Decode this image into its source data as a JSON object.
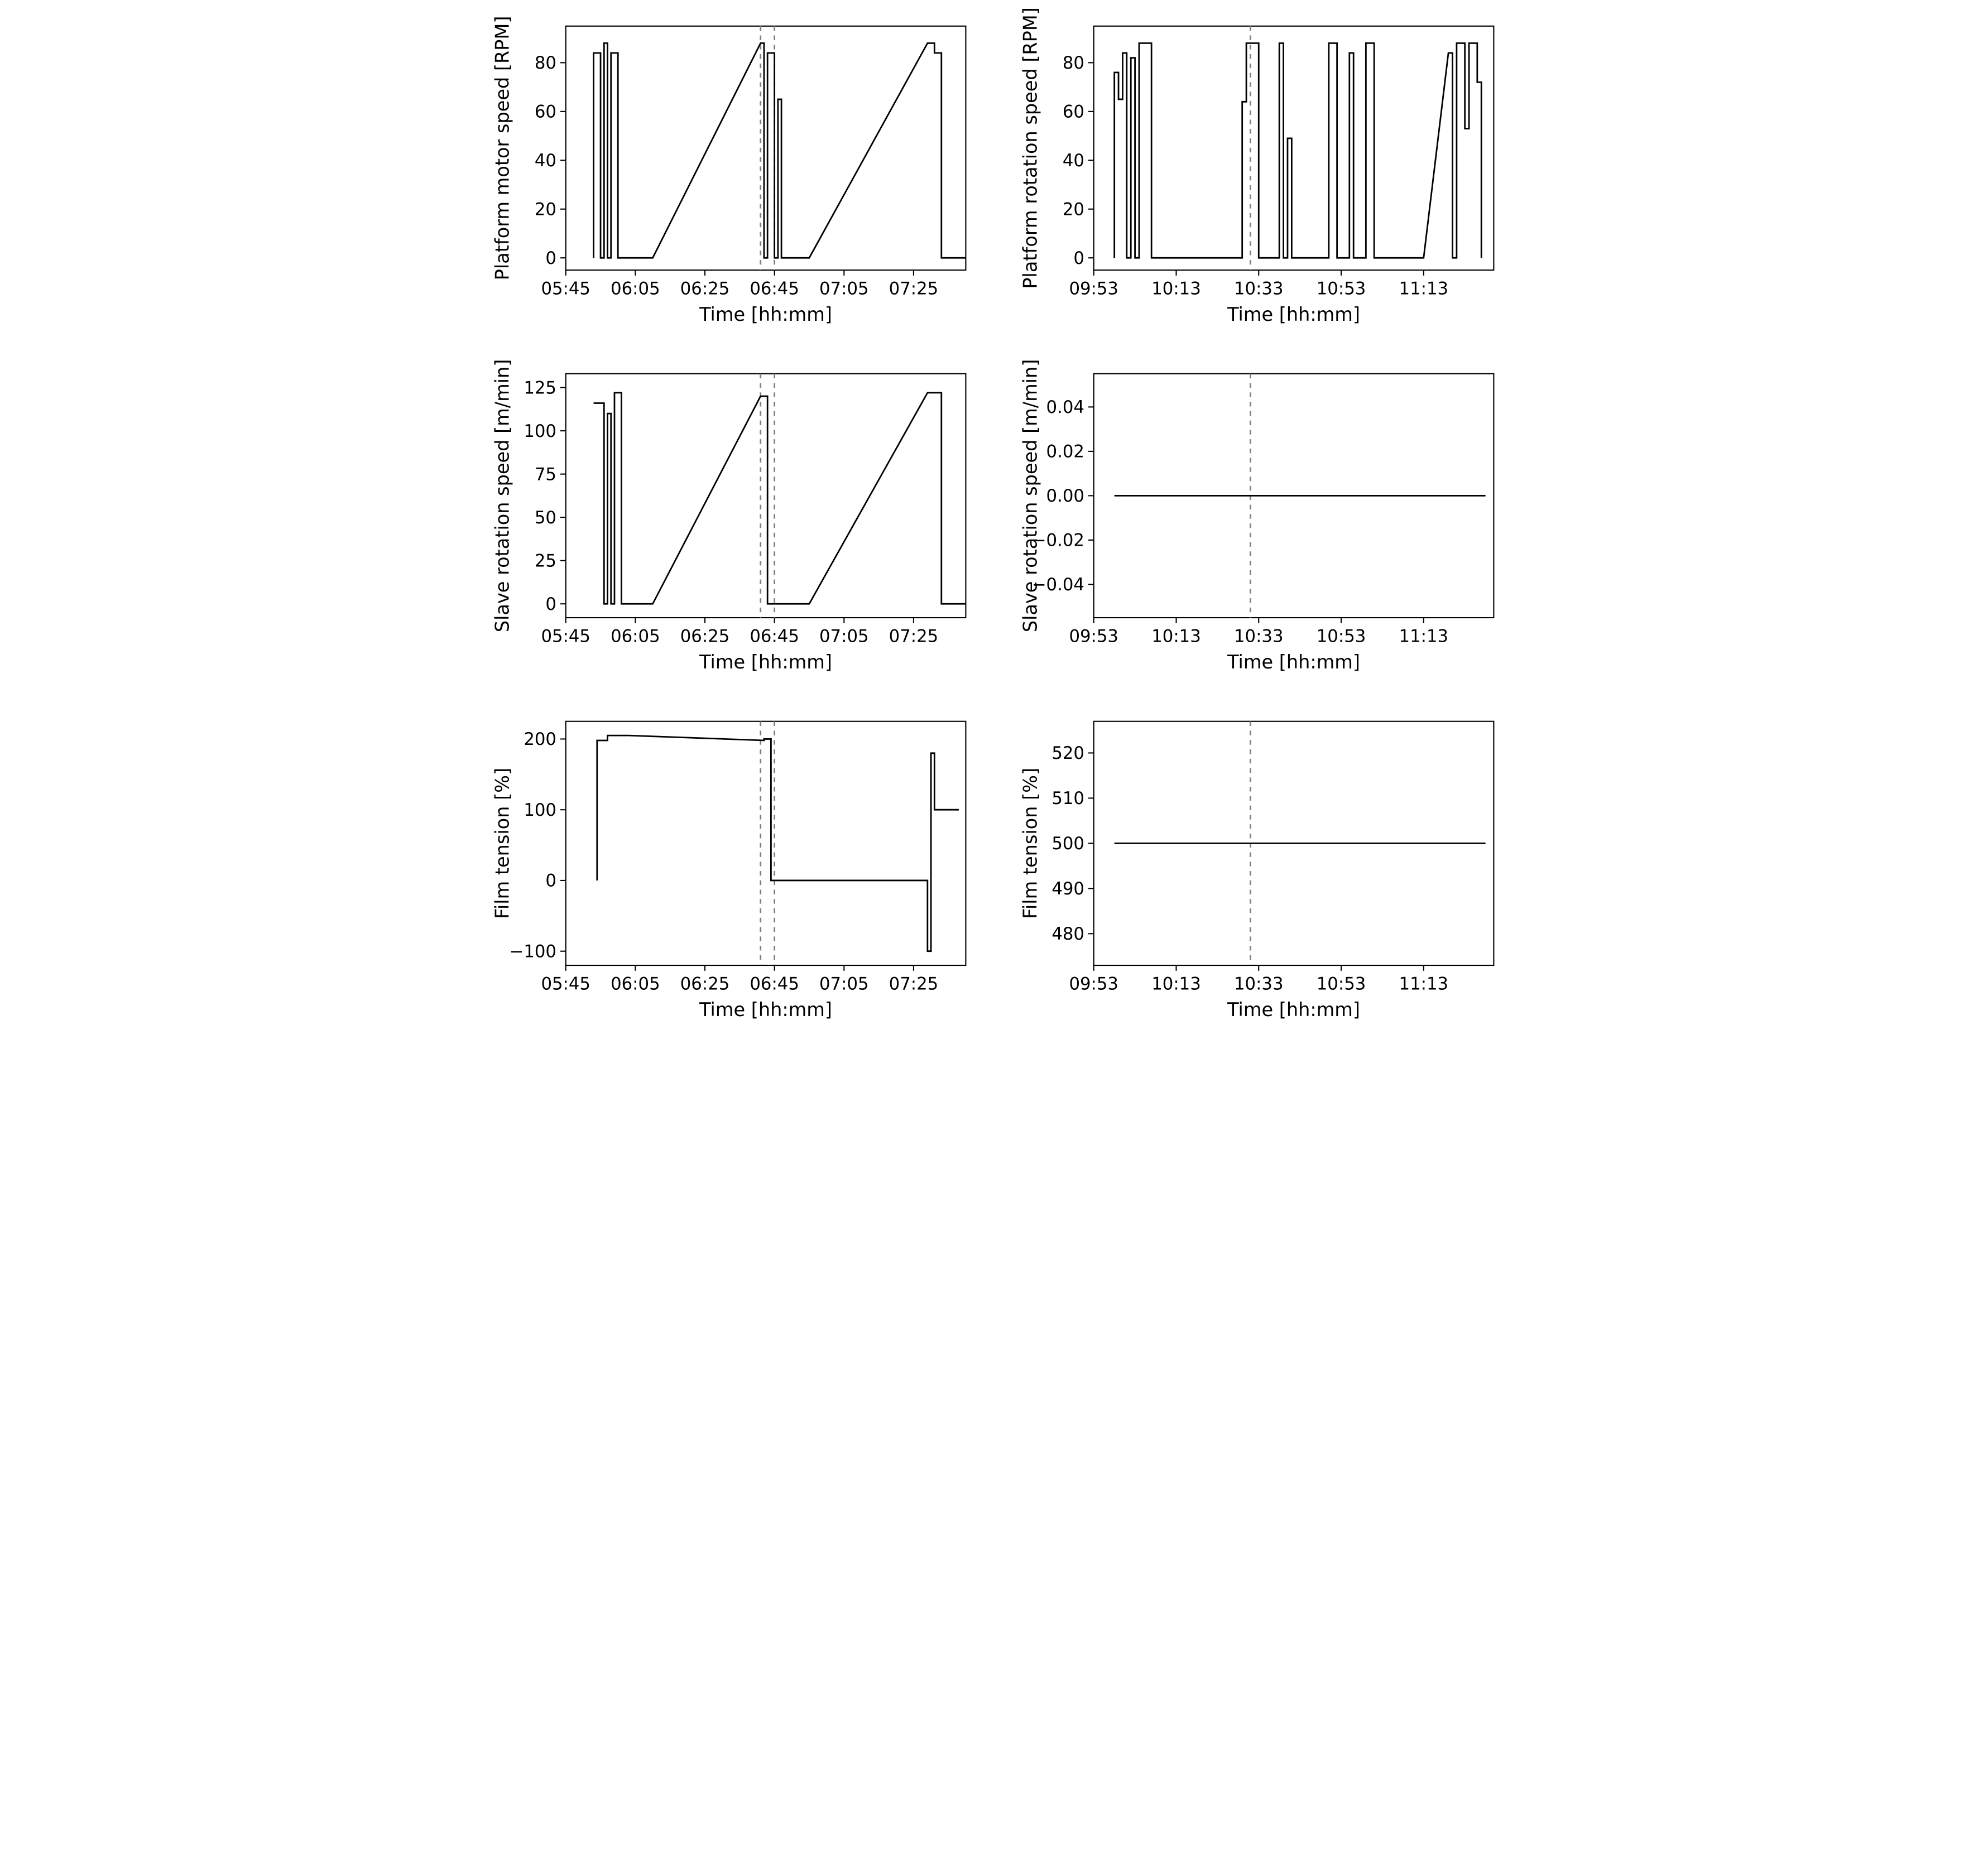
{
  "layout": {
    "rows": 3,
    "cols": 2,
    "background_color": "#ffffff",
    "line_color": "#000000",
    "axis_color": "#000000",
    "vline_color": "#808080",
    "vline_dash": "6,6",
    "line_width": 2,
    "spine_width": 1.5,
    "tick_len": 7,
    "font_family": "DejaVu Sans, Arial, sans-serif",
    "tick_fontsize": 22,
    "label_fontsize": 24
  },
  "panels": [
    {
      "id": "p00",
      "ylabel": "Platform motor speed [RPM]",
      "xlabel": "Time [hh:mm]",
      "xlim": [
        0,
        115
      ],
      "ylim": [
        -5,
        95
      ],
      "xticks": [
        {
          "v": 0,
          "label": "05:45"
        },
        {
          "v": 20,
          "label": "06:05"
        },
        {
          "v": 40,
          "label": "06:25"
        },
        {
          "v": 60,
          "label": "06:45"
        },
        {
          "v": 80,
          "label": "07:05"
        },
        {
          "v": 100,
          "label": "07:25"
        }
      ],
      "yticks": [
        {
          "v": 0,
          "label": "0"
        },
        {
          "v": 20,
          "label": "20"
        },
        {
          "v": 40,
          "label": "40"
        },
        {
          "v": 60,
          "label": "60"
        },
        {
          "v": 80,
          "label": "80"
        }
      ],
      "vlines": [
        56,
        60
      ],
      "series": [
        [
          [
            8,
            0
          ],
          [
            8,
            84
          ],
          [
            10,
            84
          ],
          [
            10,
            0
          ],
          [
            11,
            0
          ],
          [
            11,
            88
          ],
          [
            12,
            88
          ],
          [
            12,
            0
          ],
          [
            13,
            0
          ],
          [
            13,
            84
          ],
          [
            15,
            84
          ],
          [
            15,
            0
          ],
          [
            25,
            0
          ],
          [
            56,
            88
          ],
          [
            57,
            88
          ],
          [
            57,
            0
          ],
          [
            58,
            0
          ],
          [
            58,
            84
          ],
          [
            60,
            84
          ],
          [
            60,
            0
          ],
          [
            61,
            0
          ],
          [
            61,
            65
          ],
          [
            62,
            65
          ],
          [
            62,
            0
          ],
          [
            70,
            0
          ],
          [
            104,
            88
          ],
          [
            106,
            88
          ],
          [
            106,
            84
          ],
          [
            108,
            84
          ],
          [
            108,
            0
          ],
          [
            115,
            0
          ]
        ]
      ]
    },
    {
      "id": "p01",
      "ylabel": "Platform rotation speed [RPM]",
      "xlabel": "Time [hh:mm]",
      "xlim": [
        0,
        97
      ],
      "ylim": [
        -5,
        95
      ],
      "xticks": [
        {
          "v": 0,
          "label": "09:53"
        },
        {
          "v": 20,
          "label": "10:13"
        },
        {
          "v": 40,
          "label": "10:33"
        },
        {
          "v": 60,
          "label": "10:53"
        },
        {
          "v": 80,
          "label": "11:13"
        }
      ],
      "yticks": [
        {
          "v": 0,
          "label": "0"
        },
        {
          "v": 20,
          "label": "20"
        },
        {
          "v": 40,
          "label": "40"
        },
        {
          "v": 60,
          "label": "60"
        },
        {
          "v": 80,
          "label": "80"
        }
      ],
      "vlines": [
        38
      ],
      "series": [
        [
          [
            5,
            0
          ],
          [
            5,
            76
          ],
          [
            6,
            76
          ],
          [
            6,
            65
          ],
          [
            7,
            65
          ],
          [
            7,
            84
          ],
          [
            8,
            84
          ],
          [
            8,
            0
          ],
          [
            9,
            0
          ],
          [
            9,
            82
          ],
          [
            10,
            82
          ],
          [
            10,
            0
          ],
          [
            11,
            0
          ],
          [
            11,
            88
          ],
          [
            14,
            88
          ],
          [
            14,
            0
          ],
          [
            36,
            0
          ],
          [
            36,
            64
          ],
          [
            37,
            64
          ],
          [
            37,
            88
          ],
          [
            40,
            88
          ],
          [
            40,
            0
          ],
          [
            45,
            0
          ],
          [
            45,
            88
          ],
          [
            46,
            88
          ],
          [
            46,
            0
          ],
          [
            47,
            0
          ],
          [
            47,
            49
          ],
          [
            48,
            49
          ],
          [
            48,
            0
          ],
          [
            57,
            0
          ],
          [
            57,
            88
          ],
          [
            59,
            88
          ],
          [
            59,
            0
          ],
          [
            62,
            0
          ],
          [
            62,
            84
          ],
          [
            63,
            84
          ],
          [
            63,
            0
          ],
          [
            66,
            0
          ],
          [
            66,
            88
          ],
          [
            68,
            88
          ],
          [
            68,
            0
          ],
          [
            80,
            0
          ],
          [
            86,
            84
          ],
          [
            87,
            84
          ],
          [
            87,
            0
          ],
          [
            88,
            0
          ],
          [
            88,
            88
          ],
          [
            90,
            88
          ],
          [
            90,
            53
          ],
          [
            91,
            53
          ],
          [
            91,
            88
          ],
          [
            93,
            88
          ],
          [
            93,
            72
          ],
          [
            94,
            72
          ],
          [
            94,
            0
          ]
        ]
      ]
    },
    {
      "id": "p10",
      "ylabel": "Slave rotation speed [m/min]",
      "xlabel": "Time [hh:mm]",
      "xlim": [
        0,
        115
      ],
      "ylim": [
        -8,
        133
      ],
      "xticks": [
        {
          "v": 0,
          "label": "05:45"
        },
        {
          "v": 20,
          "label": "06:05"
        },
        {
          "v": 40,
          "label": "06:25"
        },
        {
          "v": 60,
          "label": "06:45"
        },
        {
          "v": 80,
          "label": "07:05"
        },
        {
          "v": 100,
          "label": "07:25"
        }
      ],
      "yticks": [
        {
          "v": 0,
          "label": "0"
        },
        {
          "v": 25,
          "label": "25"
        },
        {
          "v": 50,
          "label": "50"
        },
        {
          "v": 75,
          "label": "75"
        },
        {
          "v": 100,
          "label": "100"
        },
        {
          "v": 125,
          "label": "125"
        }
      ],
      "vlines": [
        56,
        60
      ],
      "series": [
        [
          [
            8,
            116
          ],
          [
            11,
            116
          ],
          [
            11,
            0
          ],
          [
            12,
            0
          ],
          [
            12,
            110
          ],
          [
            13,
            110
          ],
          [
            13,
            0
          ],
          [
            14,
            0
          ],
          [
            14,
            122
          ],
          [
            16,
            122
          ],
          [
            16,
            0
          ],
          [
            25,
            0
          ],
          [
            56,
            120
          ],
          [
            58,
            120
          ],
          [
            58,
            0
          ],
          [
            64,
            0
          ],
          [
            70,
            0
          ],
          [
            104,
            122
          ],
          [
            108,
            122
          ],
          [
            108,
            0
          ],
          [
            115,
            0
          ]
        ]
      ]
    },
    {
      "id": "p11",
      "ylabel": "Slave rotation speed [m/min]",
      "xlabel": "Time [hh:mm]",
      "xlim": [
        0,
        97
      ],
      "ylim": [
        -0.055,
        0.055
      ],
      "xticks": [
        {
          "v": 0,
          "label": "09:53"
        },
        {
          "v": 20,
          "label": "10:13"
        },
        {
          "v": 40,
          "label": "10:33"
        },
        {
          "v": 60,
          "label": "10:53"
        },
        {
          "v": 80,
          "label": "11:13"
        }
      ],
      "yticks": [
        {
          "v": -0.04,
          "label": "−0.04"
        },
        {
          "v": -0.02,
          "label": "−0.02"
        },
        {
          "v": 0.0,
          "label": "0.00"
        },
        {
          "v": 0.02,
          "label": "0.02"
        },
        {
          "v": 0.04,
          "label": "0.04"
        }
      ],
      "vlines": [
        38
      ],
      "series": [
        [
          [
            5,
            0
          ],
          [
            95,
            0
          ]
        ]
      ]
    },
    {
      "id": "p20",
      "ylabel": "Film tension [%]",
      "xlabel": "Time [hh:mm]",
      "xlim": [
        0,
        115
      ],
      "ylim": [
        -120,
        225
      ],
      "xticks": [
        {
          "v": 0,
          "label": "05:45"
        },
        {
          "v": 20,
          "label": "06:05"
        },
        {
          "v": 40,
          "label": "06:25"
        },
        {
          "v": 60,
          "label": "06:45"
        },
        {
          "v": 80,
          "label": "07:05"
        },
        {
          "v": 100,
          "label": "07:25"
        }
      ],
      "yticks": [
        {
          "v": -100,
          "label": "−100"
        },
        {
          "v": 0,
          "label": "0"
        },
        {
          "v": 100,
          "label": "100"
        },
        {
          "v": 200,
          "label": "200"
        }
      ],
      "vlines": [
        56,
        60
      ],
      "series": [
        [
          [
            9,
            0
          ],
          [
            9,
            198
          ],
          [
            12,
            198
          ],
          [
            12,
            205
          ],
          [
            18,
            205
          ],
          [
            57,
            198
          ],
          [
            57,
            200
          ],
          [
            59,
            200
          ],
          [
            59,
            0
          ],
          [
            104,
            0
          ],
          [
            104,
            -100
          ],
          [
            105,
            -100
          ],
          [
            105,
            180
          ],
          [
            106,
            180
          ],
          [
            106,
            100
          ],
          [
            113,
            100
          ]
        ]
      ]
    },
    {
      "id": "p21",
      "ylabel": "Film tension [%]",
      "xlabel": "Time [hh:mm]",
      "xlim": [
        0,
        97
      ],
      "ylim": [
        473,
        527
      ],
      "xticks": [
        {
          "v": 0,
          "label": "09:53"
        },
        {
          "v": 20,
          "label": "10:13"
        },
        {
          "v": 40,
          "label": "10:33"
        },
        {
          "v": 60,
          "label": "10:53"
        },
        {
          "v": 80,
          "label": "11:13"
        }
      ],
      "yticks": [
        {
          "v": 480,
          "label": "480"
        },
        {
          "v": 490,
          "label": "490"
        },
        {
          "v": 500,
          "label": "500"
        },
        {
          "v": 510,
          "label": "510"
        },
        {
          "v": 520,
          "label": "520"
        }
      ],
      "vlines": [
        38
      ],
      "series": [
        [
          [
            5,
            500
          ],
          [
            95,
            500
          ]
        ]
      ]
    }
  ]
}
